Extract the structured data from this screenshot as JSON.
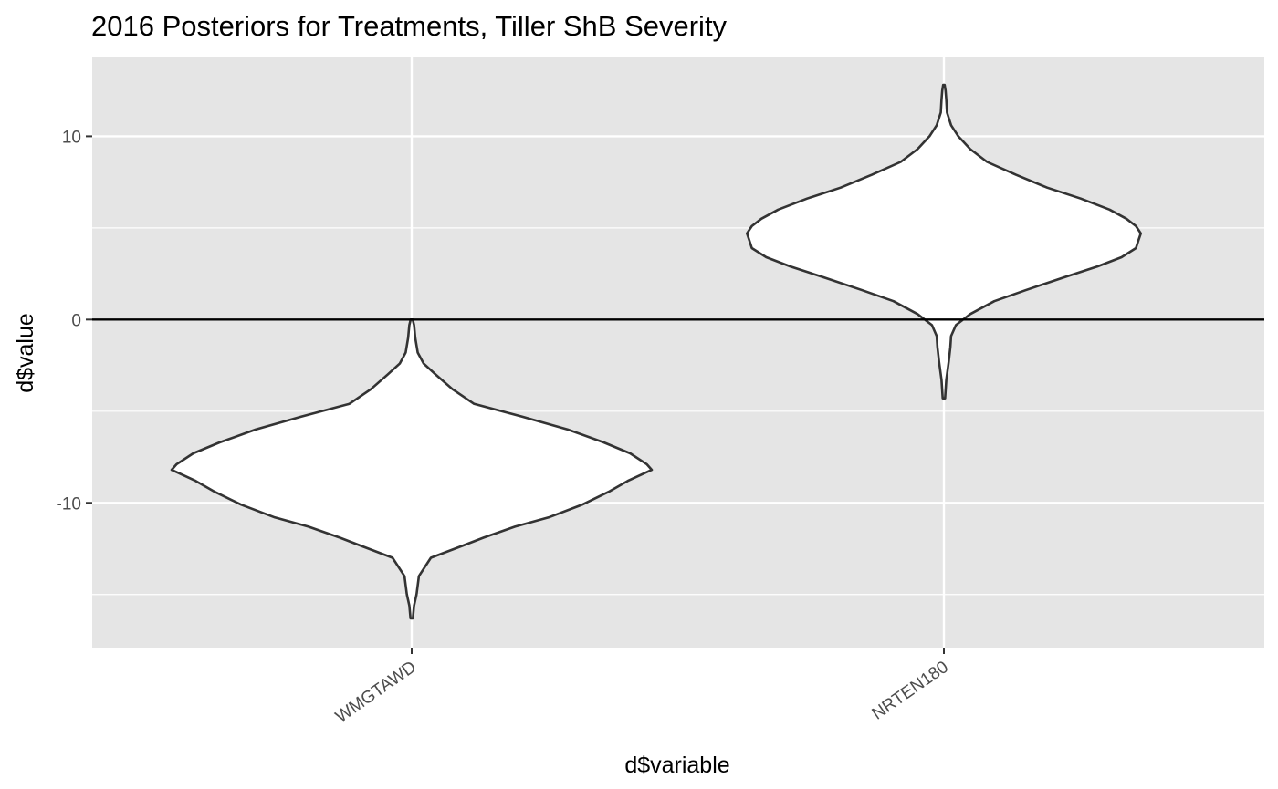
{
  "chart_data": {
    "type": "violin",
    "title": "2016 Posteriors for Treatments, Tiller ShB Severity",
    "xlabel": "d$variable",
    "ylabel": "d$value",
    "categories": [
      "WMGTAWD",
      "NRTEN180"
    ],
    "ylim": [
      -17.9,
      14.3
    ],
    "y_major_ticks": [
      -10,
      0,
      10
    ],
    "y_minor_ticks": [
      -15,
      -5,
      5
    ],
    "hline": 0,
    "grid": true,
    "background": "#e5e5e5",
    "violins": [
      {
        "category": "WMGTAWD",
        "min": -16.3,
        "max": 0.0,
        "profile": [
          [
            -16.3,
            0.005
          ],
          [
            -15.6,
            0.01
          ],
          [
            -15.0,
            0.02
          ],
          [
            -14.0,
            0.03
          ],
          [
            -13.0,
            0.08
          ],
          [
            -12.4,
            0.2
          ],
          [
            -11.9,
            0.3
          ],
          [
            -11.3,
            0.43
          ],
          [
            -10.8,
            0.57
          ],
          [
            -10.1,
            0.71
          ],
          [
            -9.4,
            0.82
          ],
          [
            -8.8,
            0.9
          ],
          [
            -8.2,
            1.0
          ],
          [
            -7.9,
            0.98
          ],
          [
            -7.3,
            0.91
          ],
          [
            -6.7,
            0.8
          ],
          [
            -6.0,
            0.65
          ],
          [
            -5.3,
            0.46
          ],
          [
            -4.6,
            0.26
          ],
          [
            -3.8,
            0.17
          ],
          [
            -3.0,
            0.1
          ],
          [
            -2.4,
            0.05
          ],
          [
            -1.8,
            0.025
          ],
          [
            -1.0,
            0.015
          ],
          [
            -0.3,
            0.01
          ],
          [
            0.0,
            0.004
          ]
        ]
      },
      {
        "category": "NRTEN180",
        "min": -4.3,
        "max": 12.8,
        "profile": [
          [
            -4.3,
            0.005
          ],
          [
            -3.3,
            0.01
          ],
          [
            -2.3,
            0.02
          ],
          [
            -1.5,
            0.027
          ],
          [
            -0.9,
            0.03
          ],
          [
            -0.3,
            0.05
          ],
          [
            0.3,
            0.11
          ],
          [
            1.0,
            0.21
          ],
          [
            1.6,
            0.34
          ],
          [
            2.3,
            0.5
          ],
          [
            2.9,
            0.64
          ],
          [
            3.4,
            0.74
          ],
          [
            3.9,
            0.8
          ],
          [
            4.3,
            0.81
          ],
          [
            4.7,
            0.82
          ],
          [
            5.1,
            0.8
          ],
          [
            5.5,
            0.76
          ],
          [
            6.0,
            0.69
          ],
          [
            6.6,
            0.57
          ],
          [
            7.2,
            0.43
          ],
          [
            7.9,
            0.3
          ],
          [
            8.6,
            0.18
          ],
          [
            9.3,
            0.11
          ],
          [
            10.0,
            0.06
          ],
          [
            10.6,
            0.03
          ],
          [
            11.3,
            0.013
          ],
          [
            12.0,
            0.01
          ],
          [
            12.5,
            0.007
          ],
          [
            12.8,
            0.003
          ]
        ]
      }
    ]
  }
}
